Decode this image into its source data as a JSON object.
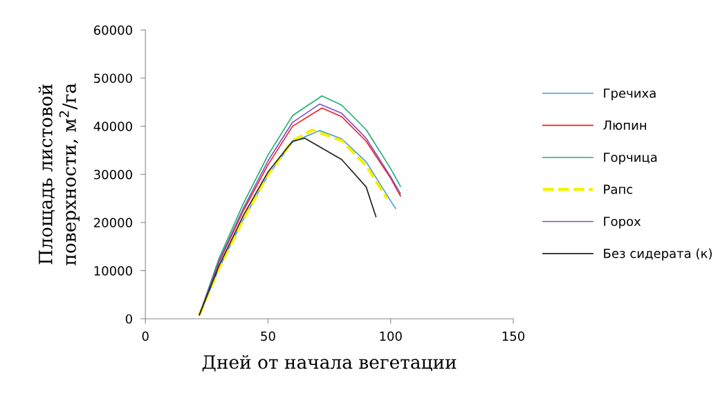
{
  "chart_data": {
    "type": "line",
    "xlabel": "Дней от начала вегетации",
    "ylabel": "Площадь листовой\nповерхности, м$^{2}$/га",
    "xlim": [
      0,
      150
    ],
    "xticks": [
      0,
      50,
      100,
      150
    ],
    "ylim": [
      0,
      60000
    ],
    "yticks": [
      0,
      10000,
      20000,
      30000,
      40000,
      50000,
      60000
    ],
    "grid": false,
    "legend": "right",
    "marker": "none",
    "series": [
      {
        "name": "Гречиха",
        "color": "#4a9ad8",
        "line_style": "solid",
        "x": [
          22,
          30,
          40,
          50,
          60,
          71,
          80,
          90,
          100,
          102
        ],
        "values": [
          800,
          10500,
          20700,
          29800,
          36700,
          39100,
          37400,
          32600,
          24500,
          22900
        ]
      },
      {
        "name": "Люпин",
        "color": "#f02020",
        "line_style": "solid",
        "x": [
          22,
          30,
          40,
          50,
          60,
          72,
          80,
          90,
          100,
          104
        ],
        "values": [
          800,
          11700,
          22500,
          32000,
          40000,
          43800,
          42000,
          36900,
          29200,
          25500
        ]
      },
      {
        "name": "Горчица",
        "color": "#20b070",
        "line_style": "solid",
        "x": [
          22,
          30,
          40,
          50,
          60,
          72,
          80,
          90,
          100,
          104
        ],
        "values": [
          800,
          12500,
          24000,
          34000,
          42200,
          46300,
          44400,
          39300,
          31200,
          27500
        ]
      },
      {
        "name": "Рапс",
        "color": "#f5f000",
        "line_style": "dashed",
        "x": [
          22,
          30,
          40,
          50,
          60,
          68,
          80,
          90,
          98.5
        ],
        "values": [
          800,
          10500,
          20700,
          30000,
          37000,
          39200,
          37000,
          31800,
          25000
        ]
      },
      {
        "name": "Горох",
        "color": "#8050c0",
        "line_style": "solid",
        "x": [
          22,
          30,
          40,
          50,
          60,
          71,
          80,
          90,
          100,
          104
        ],
        "values": [
          800,
          12000,
          23000,
          32800,
          40800,
          44600,
          42700,
          37500,
          29500,
          26000
        ]
      },
      {
        "name": "Без сидерата (к)",
        "color": "#202020",
        "line_style": "solid",
        "x": [
          22,
          30,
          40,
          50,
          60,
          65,
          80,
          90,
          94
        ],
        "values": [
          800,
          11000,
          21500,
          30500,
          36900,
          37500,
          33100,
          27400,
          21200
        ]
      }
    ]
  }
}
